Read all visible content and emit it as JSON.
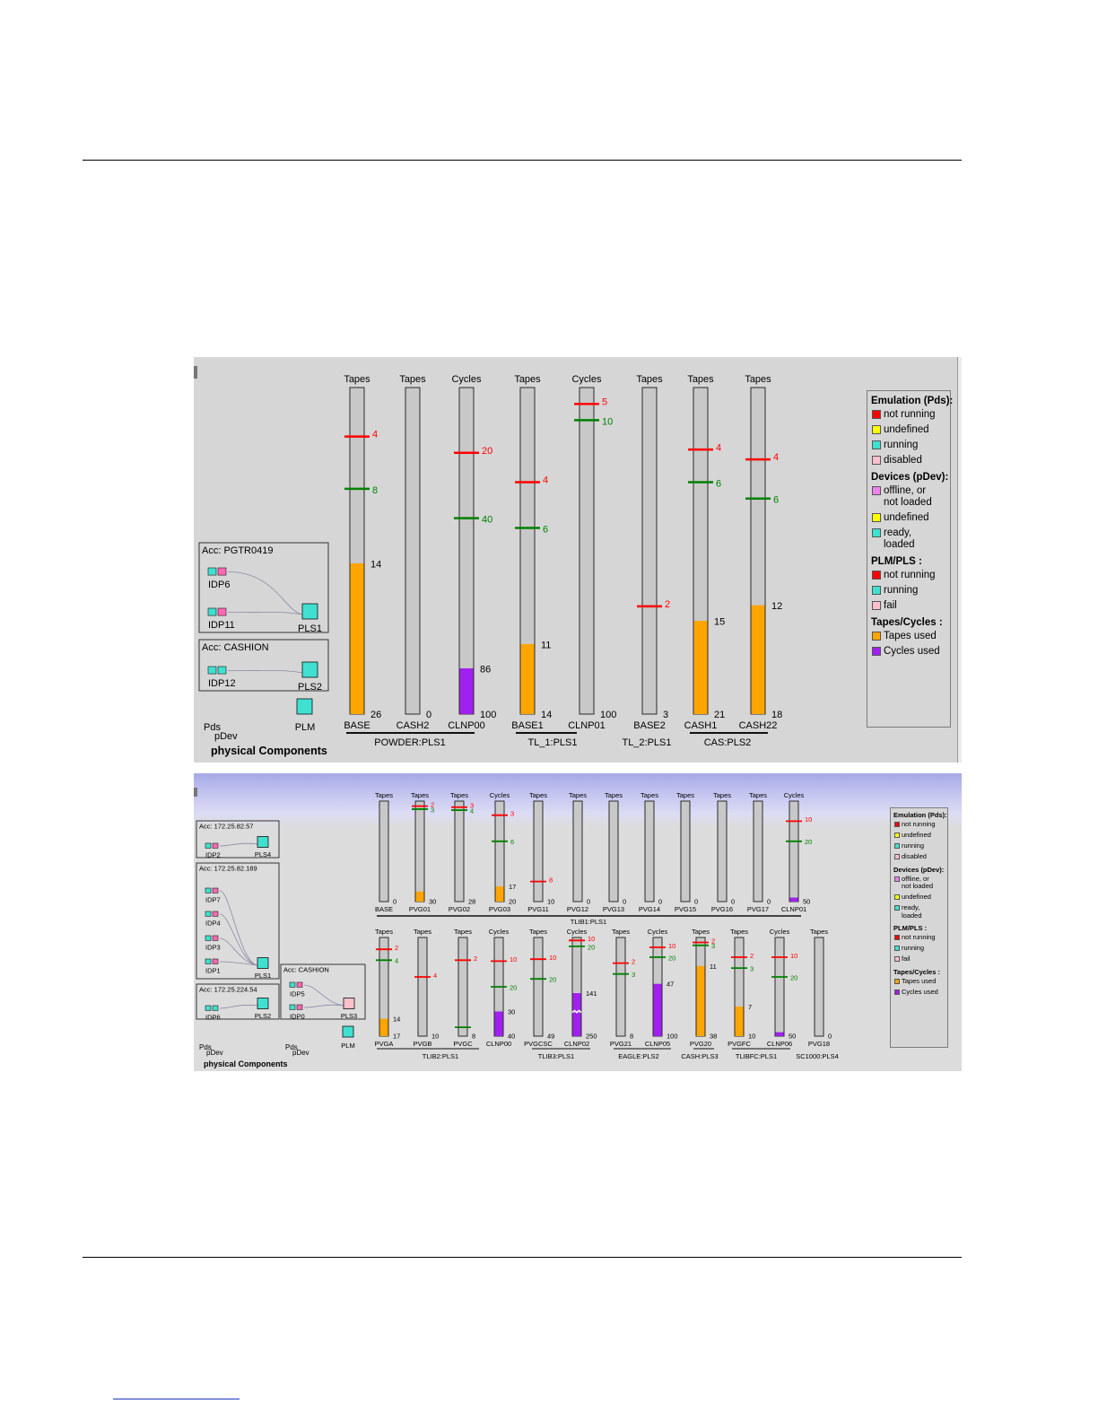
{
  "colors": {
    "tapes_used": "#ffa500",
    "cycles_used": "#a020f0",
    "tube_bg": "#c8c8c8",
    "low_marker": "#ff0000",
    "high_marker": "#008000",
    "device_teal": "#40e0d0",
    "device_pink": "#ff69b4",
    "fail_pink": "#ffc0cb",
    "not_running_red": "#ff0000",
    "undefined_yellow": "#ffff00"
  },
  "panel1": {
    "footer_pds": "Pds",
    "footer_pdev": "pDev",
    "footer_title": "physical Components",
    "accs": [
      {
        "label": "Acc: PGTR0419",
        "devices": [
          "IDP6",
          "IDP11"
        ],
        "pls": "PLS1"
      },
      {
        "label": "Acc: CASHION",
        "devices": [
          "IDP12"
        ],
        "pls": "PLS2"
      }
    ],
    "plm_label": "PLM",
    "gauges": [
      {
        "head": "Tapes",
        "name": "BASE",
        "kind": "tapes",
        "max": 26,
        "used": 12,
        "used_label": "14",
        "total_label": "26",
        "low": "4",
        "high": "8",
        "low_pos": 0.85,
        "high_pos": 0.69
      },
      {
        "head": "Tapes",
        "name": "CASH2",
        "kind": "tapes",
        "max": 1,
        "used": 0,
        "used_label": "",
        "total_label": "0",
        "low": null,
        "high": null
      },
      {
        "head": "Cycles",
        "name": "CLNP00",
        "kind": "cycles",
        "max": 100,
        "used": 14,
        "used_label": "86",
        "total_label": "100",
        "low": "20",
        "high": "40",
        "low_pos": 0.8,
        "high_pos": 0.6
      },
      {
        "head": "Tapes",
        "name": "BASE1",
        "kind": "tapes",
        "max": 14,
        "used": 3,
        "used_label": "11",
        "total_label": "14",
        "low": "4",
        "high": "6",
        "low_pos": 0.71,
        "high_pos": 0.57
      },
      {
        "head": "Cycles",
        "name": "CLNP01",
        "kind": "cycles",
        "max": 100,
        "used": 0,
        "used_label": "",
        "total_label": "100",
        "low": "5",
        "high": "10",
        "low_pos": 0.95,
        "high_pos": 0.9
      },
      {
        "head": "Tapes",
        "name": "BASE2",
        "kind": "tapes",
        "max": 3,
        "used": 0,
        "used_label": "",
        "total_label": "3",
        "low": "2",
        "high": null,
        "low_pos": 0.33
      },
      {
        "head": "Tapes",
        "name": "CASH1",
        "kind": "tapes",
        "max": 21,
        "used": 6,
        "used_label": "15",
        "total_label": "21",
        "low": "4",
        "high": "6",
        "low_pos": 0.81,
        "high_pos": 0.71
      },
      {
        "head": "Tapes",
        "name": "CASH22",
        "kind": "tapes",
        "max": 18,
        "used": 6,
        "used_label": "12",
        "total_label": "18",
        "low": "4",
        "high": "6",
        "low_pos": 0.78,
        "high_pos": 0.66
      }
    ],
    "groups": [
      {
        "label": "POWDER:PLS1"
      },
      {
        "label": "TL_1:PLS1"
      },
      {
        "label": "TL_2:PLS1"
      },
      {
        "label": "CAS:PLS2"
      }
    ]
  },
  "panel2": {
    "footer_pds_1": "Pds",
    "footer_pdev_1": "pDev",
    "footer_pds_2": "Pds",
    "footer_pdev_2": "pDev",
    "footer_title": "physical Components",
    "accs": [
      {
        "label": "Acc: 172.25.82.57",
        "devices": [
          "IDP2"
        ],
        "pls": "PLS4"
      },
      {
        "label": "Acc: 172.25.82.189",
        "devices": [
          "IDP7",
          "IDP4",
          "IDP3",
          "IDP1"
        ],
        "pls": "PLS1"
      },
      {
        "label": "Acc: 172.25.224.54",
        "devices": [
          "IDP6"
        ],
        "pls": "PLS2"
      },
      {
        "label": "Acc: CASHION",
        "devices": [
          "IDP5",
          "IDP0"
        ],
        "pls": "PLS3"
      }
    ],
    "plm_label": "PLM",
    "row1": [
      {
        "head": "Tapes",
        "name": "BASE",
        "kind": "tapes",
        "max": 1,
        "used": 0,
        "used_label": "",
        "total_label": "0",
        "low": null,
        "high": null
      },
      {
        "head": "Tapes",
        "name": "PVG01",
        "kind": "tapes",
        "max": 30,
        "used": 3,
        "used_label": "",
        "total_label": "30",
        "low": "2",
        "high": "3",
        "low_pos": 0.95,
        "high_pos": 0.92
      },
      {
        "head": "Tapes",
        "name": "PVG02",
        "kind": "tapes",
        "max": 28,
        "used": 0,
        "used_label": "",
        "total_label": "28",
        "low": "3",
        "high": "4",
        "low_pos": 0.94,
        "high_pos": 0.91
      },
      {
        "head": "Cycles",
        "name": "PVG03",
        "kind": "tapes",
        "max": 20,
        "used": 3,
        "used_label": "17",
        "total_label": "20",
        "low": "3",
        "high": "6",
        "low_pos": 0.86,
        "high_pos": 0.6
      },
      {
        "head": "Tapes",
        "name": "PVG11",
        "kind": "tapes",
        "max": 10,
        "used": 0,
        "used_label": "",
        "total_label": "10",
        "low": "8",
        "high": null,
        "low_pos": 0.2
      },
      {
        "head": "Tapes",
        "name": "PVG12",
        "kind": "tapes",
        "max": 1,
        "used": 0,
        "used_label": "",
        "total_label": "0",
        "low": null,
        "high": null
      },
      {
        "head": "Tapes",
        "name": "PVG13",
        "kind": "tapes",
        "max": 1,
        "used": 0,
        "used_label": "",
        "total_label": "0",
        "low": null,
        "high": null
      },
      {
        "head": "Tapes",
        "name": "PVG14",
        "kind": "tapes",
        "max": 1,
        "used": 0,
        "used_label": "",
        "total_label": "0",
        "low": null,
        "high": null
      },
      {
        "head": "Tapes",
        "name": "PVG15",
        "kind": "tapes",
        "max": 1,
        "used": 0,
        "used_label": "",
        "total_label": "0",
        "low": null,
        "high": null
      },
      {
        "head": "Tapes",
        "name": "PVG16",
        "kind": "tapes",
        "max": 1,
        "used": 0,
        "used_label": "",
        "total_label": "0",
        "low": null,
        "high": null
      },
      {
        "head": "Tapes",
        "name": "PVG17",
        "kind": "tapes",
        "max": 1,
        "used": 0,
        "used_label": "",
        "total_label": "0",
        "low": null,
        "high": null
      },
      {
        "head": "Cycles",
        "name": "CLNP01",
        "kind": "cycles",
        "max": 50,
        "used": 2,
        "used_label": "",
        "total_label": "50",
        "low": "10",
        "high": "20",
        "low_pos": 0.8,
        "high_pos": 0.6
      }
    ],
    "row1_group": "TLIB1:PLS1",
    "row2": [
      {
        "head": "Tapes",
        "name": "PVGA",
        "kind": "tapes",
        "max": 17,
        "used": 3,
        "used_label": "14",
        "total_label": "17",
        "low": "2",
        "high": "4",
        "low_pos": 0.88,
        "high_pos": 0.77
      },
      {
        "head": "Tapes",
        "name": "PVGB",
        "kind": "tapes",
        "max": 10,
        "used": 0,
        "used_label": "",
        "total_label": "10",
        "low": "4",
        "high": null,
        "low_pos": 0.6
      },
      {
        "head": "Tapes",
        "name": "PVGC",
        "kind": "tapes",
        "max": 8,
        "used": 0,
        "used_label": "",
        "total_label": "8",
        "low": "2",
        "high": null,
        "low_pos": 0.77,
        "green_bottom": 0.09
      },
      {
        "head": "Cycles",
        "name": "CLNP00",
        "kind": "cycles",
        "max": 40,
        "used": 10,
        "used_label": "30",
        "total_label": "40",
        "low": "10",
        "high": "20",
        "low_pos": 0.76,
        "high_pos": 0.5
      },
      {
        "head": "Tapes",
        "name": "PVGCSC",
        "kind": "tapes",
        "max": 49,
        "used": 0,
        "used_label": "",
        "total_label": "49",
        "low": "10",
        "high": "20",
        "low_pos": 0.78,
        "high_pos": 0.58
      },
      {
        "head": "Cycles",
        "name": "CLNP02",
        "kind": "cycles",
        "max": 250,
        "used": 109,
        "used_label": "141",
        "total_label": "250",
        "low": "10",
        "high": "20",
        "low_pos": 0.97,
        "high_pos": 0.91,
        "broken": true
      },
      {
        "head": "Tapes",
        "name": "PVG21",
        "kind": "tapes",
        "max": 8,
        "used": 0,
        "used_label": "",
        "total_label": "8",
        "low": "2",
        "high": "3",
        "low_pos": 0.74,
        "high_pos": 0.63
      },
      {
        "head": "Cycles",
        "name": "CLNP05",
        "kind": "cycles",
        "max": 100,
        "used": 53,
        "used_label": "47",
        "total_label": "100",
        "low": "10",
        "high": "20",
        "low_pos": 0.9,
        "high_pos": 0.8
      },
      {
        "head": "Tapes",
        "name": "PVG20",
        "kind": "tapes",
        "max": 38,
        "used": 27,
        "used_label": "11",
        "total_label": "38",
        "low": "2",
        "high": "3",
        "low_pos": 0.95,
        "high_pos": 0.92
      },
      {
        "head": "Tapes",
        "name": "PVGFC",
        "kind": "tapes",
        "max": 10,
        "used": 3,
        "used_label": "7",
        "total_label": "10",
        "low": "2",
        "high": "3",
        "low_pos": 0.8,
        "high_pos": 0.69
      },
      {
        "head": "Cycles",
        "name": "CLNP06",
        "kind": "cycles",
        "max": 50,
        "used": 2,
        "used_label": "",
        "total_label": "50",
        "low": "10",
        "high": "20",
        "low_pos": 0.8,
        "high_pos": 0.6
      },
      {
        "head": "Tapes",
        "name": "PVG18",
        "kind": "tapes",
        "max": 1,
        "used": 0,
        "used_label": "",
        "total_label": "0",
        "low": null,
        "high": null
      }
    ],
    "row2_groups": [
      {
        "label": "TLIB2:PLS1"
      },
      {
        "label": "TLIB3:PLS1"
      },
      {
        "label": "EAGLE:PLS2"
      },
      {
        "label": "CASH:PLS3"
      },
      {
        "label": "TLIBFC:PLS1"
      },
      {
        "label": "SC1000:PLS4"
      }
    ]
  },
  "legend": {
    "emulation_title": "Emulation (Pds):",
    "emulation_items": [
      {
        "color": "#ff0000",
        "label": "not running"
      },
      {
        "color": "#ffff00",
        "label": "undefined"
      },
      {
        "color": "#40e0d0",
        "label": "running"
      },
      {
        "color": "#ffc0cb",
        "label": "disabled"
      }
    ],
    "devices_title": "Devices (pDev):",
    "devices_items": [
      {
        "color": "#ee82ee",
        "label": "offline, or",
        "label2": "not loaded"
      },
      {
        "color": "#ffff00",
        "label": "undefined"
      },
      {
        "color": "#40e0d0",
        "label": "ready,",
        "label2": "loaded"
      }
    ],
    "plm_title": "PLM/PLS :",
    "plm_items": [
      {
        "color": "#ff0000",
        "label": "not running"
      },
      {
        "color": "#40e0d0",
        "label": "running"
      },
      {
        "color": "#ffc0cb",
        "label": "fail"
      }
    ],
    "tapes_title": "Tapes/Cycles :",
    "tapes_items": [
      {
        "color": "#ffa500",
        "label": "Tapes used"
      },
      {
        "color": "#a020f0",
        "label": "Cycles used"
      }
    ]
  }
}
